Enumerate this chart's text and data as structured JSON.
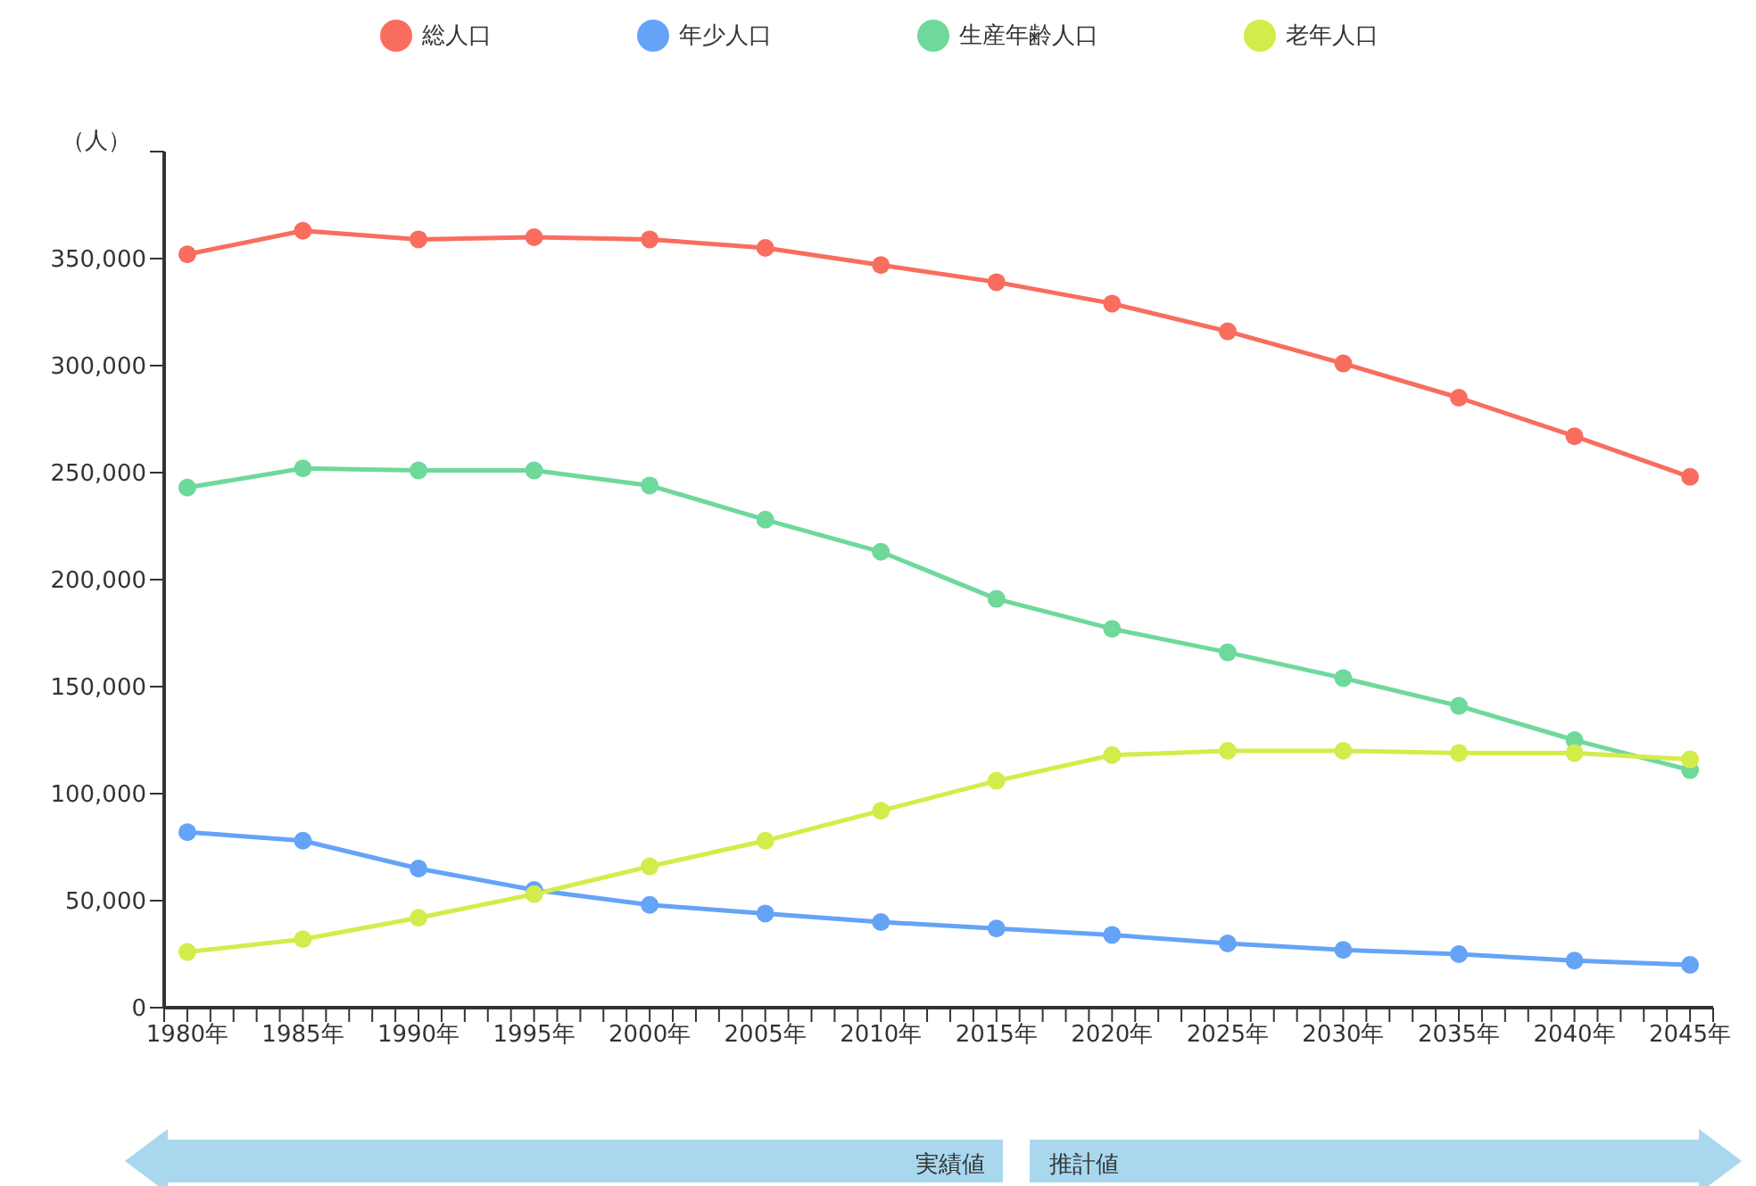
{
  "chart_data": {
    "type": "line",
    "ylabel": "（人）",
    "x": [
      1980,
      1985,
      1990,
      1995,
      2000,
      2005,
      2010,
      2015,
      2020,
      2025,
      2030,
      2035,
      2040,
      2045
    ],
    "series": [
      {
        "name": "総人口",
        "color": "#f96d5f",
        "values": [
          352000,
          363000,
          359000,
          360000,
          359000,
          355000,
          347000,
          339000,
          329000,
          316000,
          301000,
          285000,
          267000,
          248000
        ]
      },
      {
        "name": "年少人口",
        "color": "#65a3f7",
        "values": [
          82000,
          78000,
          65000,
          55000,
          48000,
          44000,
          40000,
          37000,
          34000,
          30000,
          27000,
          25000,
          22000,
          20000
        ]
      },
      {
        "name": "生産年齢人口",
        "color": "#6fd89b",
        "values": [
          243000,
          252000,
          251000,
          251000,
          244000,
          228000,
          213000,
          191000,
          177000,
          166000,
          154000,
          141000,
          125000,
          111000
        ]
      },
      {
        "name": "老年人口",
        "color": "#d4ec4b",
        "values": [
          26000,
          32000,
          42000,
          53000,
          66000,
          78000,
          92000,
          106000,
          118000,
          120000,
          120000,
          119000,
          119000,
          116000
        ]
      }
    ],
    "xlim": [
      1979,
      2046
    ],
    "xticks": [
      {
        "value": 1979,
        "label": null
      },
      {
        "value": 1980,
        "label": "1980年"
      },
      {
        "value": 1981,
        "label": null
      },
      {
        "value": 1982,
        "label": null
      },
      {
        "value": 1983,
        "label": null
      },
      {
        "value": 1984,
        "label": null
      },
      {
        "value": 1985,
        "label": "1985年"
      },
      {
        "value": 1986,
        "label": null
      },
      {
        "value": 1987,
        "label": null
      },
      {
        "value": 1988,
        "label": null
      },
      {
        "value": 1989,
        "label": null
      },
      {
        "value": 1990,
        "label": "1990年"
      },
      {
        "value": 1991,
        "label": null
      },
      {
        "value": 1992,
        "label": null
      },
      {
        "value": 1993,
        "label": null
      },
      {
        "value": 1994,
        "label": null
      },
      {
        "value": 1995,
        "label": "1995年"
      },
      {
        "value": 1996,
        "label": null
      },
      {
        "value": 1997,
        "label": null
      },
      {
        "value": 1998,
        "label": null
      },
      {
        "value": 1999,
        "label": null
      },
      {
        "value": 2000,
        "label": "2000年"
      },
      {
        "value": 2001,
        "label": null
      },
      {
        "value": 2002,
        "label": null
      },
      {
        "value": 2003,
        "label": null
      },
      {
        "value": 2004,
        "label": null
      },
      {
        "value": 2005,
        "label": "2005年"
      },
      {
        "value": 2006,
        "label": null
      },
      {
        "value": 2007,
        "label": null
      },
      {
        "value": 2008,
        "label": null
      },
      {
        "value": 2009,
        "label": null
      },
      {
        "value": 2010,
        "label": "2010年"
      },
      {
        "value": 2011,
        "label": null
      },
      {
        "value": 2012,
        "label": null
      },
      {
        "value": 2013,
        "label": null
      },
      {
        "value": 2014,
        "label": null
      },
      {
        "value": 2015,
        "label": "2015年"
      },
      {
        "value": 2016,
        "label": null
      },
      {
        "value": 2017,
        "label": null
      },
      {
        "value": 2018,
        "label": null
      },
      {
        "value": 2019,
        "label": null
      },
      {
        "value": 2020,
        "label": "2020年"
      },
      {
        "value": 2021,
        "label": null
      },
      {
        "value": 2022,
        "label": null
      },
      {
        "value": 2023,
        "label": null
      },
      {
        "value": 2024,
        "label": null
      },
      {
        "value": 2025,
        "label": "2025年"
      },
      {
        "value": 2026,
        "label": null
      },
      {
        "value": 2027,
        "label": null
      },
      {
        "value": 2028,
        "label": null
      },
      {
        "value": 2029,
        "label": null
      },
      {
        "value": 2030,
        "label": "2030年"
      },
      {
        "value": 2031,
        "label": null
      },
      {
        "value": 2032,
        "label": null
      },
      {
        "value": 2033,
        "label": null
      },
      {
        "value": 2034,
        "label": null
      },
      {
        "value": 2035,
        "label": "2035年"
      },
      {
        "value": 2036,
        "label": null
      },
      {
        "value": 2037,
        "label": null
      },
      {
        "value": 2038,
        "label": null
      },
      {
        "value": 2039,
        "label": null
      },
      {
        "value": 2040,
        "label": "2040年"
      },
      {
        "value": 2041,
        "label": null
      },
      {
        "value": 2042,
        "label": null
      },
      {
        "value": 2043,
        "label": null
      },
      {
        "value": 2044,
        "label": null
      },
      {
        "value": 2045,
        "label": "2045年"
      },
      {
        "value": 2046,
        "label": null
      }
    ],
    "ylim": [
      0,
      400000
    ],
    "yticks": [
      {
        "value": 0,
        "label": "0"
      },
      {
        "value": 50000,
        "label": "50,000"
      },
      {
        "value": 100000,
        "label": "100,000"
      },
      {
        "value": 150000,
        "label": "150,000"
      },
      {
        "value": 200000,
        "label": "200,000"
      },
      {
        "value": 250000,
        "label": "250,000"
      },
      {
        "value": 300000,
        "label": "300,000"
      },
      {
        "value": 350000,
        "label": "350,000"
      },
      {
        "value": 400000,
        "label": null
      }
    ],
    "grid": false,
    "legend": "top",
    "marker": "circle",
    "line_style": "solid",
    "annotations": [
      "実績値",
      "推計値"
    ]
  }
}
